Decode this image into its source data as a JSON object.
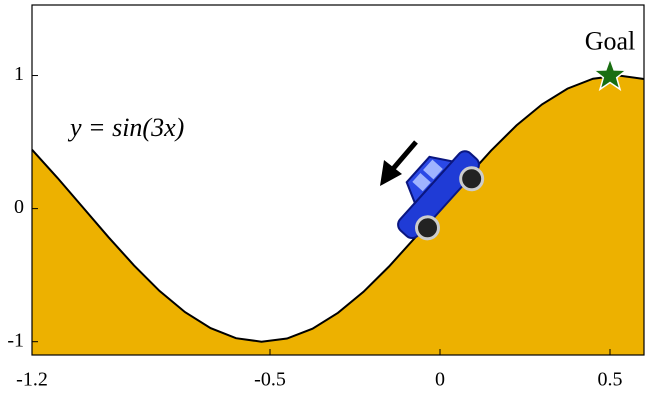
{
  "chart_data": {
    "type": "area",
    "annotation": "y = sin(3x)",
    "x": [
      -1.2,
      -1.125,
      -1.05,
      -0.975,
      -0.9,
      -0.825,
      -0.75,
      -0.675,
      -0.6,
      -0.525,
      -0.45,
      -0.375,
      -0.3,
      -0.225,
      -0.15,
      -0.075,
      0,
      0.075,
      0.15,
      0.225,
      0.3,
      0.375,
      0.45,
      0.525,
      0.6
    ],
    "values": [
      0.443,
      0.231,
      0.008,
      -0.215,
      -0.427,
      -0.618,
      -0.778,
      -0.898,
      -0.974,
      -1.0,
      -0.976,
      -0.902,
      -0.783,
      -0.625,
      -0.435,
      -0.223,
      0,
      0.223,
      0.435,
      0.625,
      0.783,
      0.902,
      0.976,
      1.0,
      0.974
    ],
    "color": "#edb100",
    "goal": {
      "label": "Goal",
      "x": 0.5,
      "y": 1,
      "color": "#1a6e12"
    },
    "xlim": [
      -1.2,
      0.6
    ],
    "xticks": [
      -1.2,
      -0.5,
      0,
      0.5
    ],
    "ylim": [
      -1.1,
      1.53
    ],
    "yticks": [
      -1,
      0,
      1
    ]
  }
}
